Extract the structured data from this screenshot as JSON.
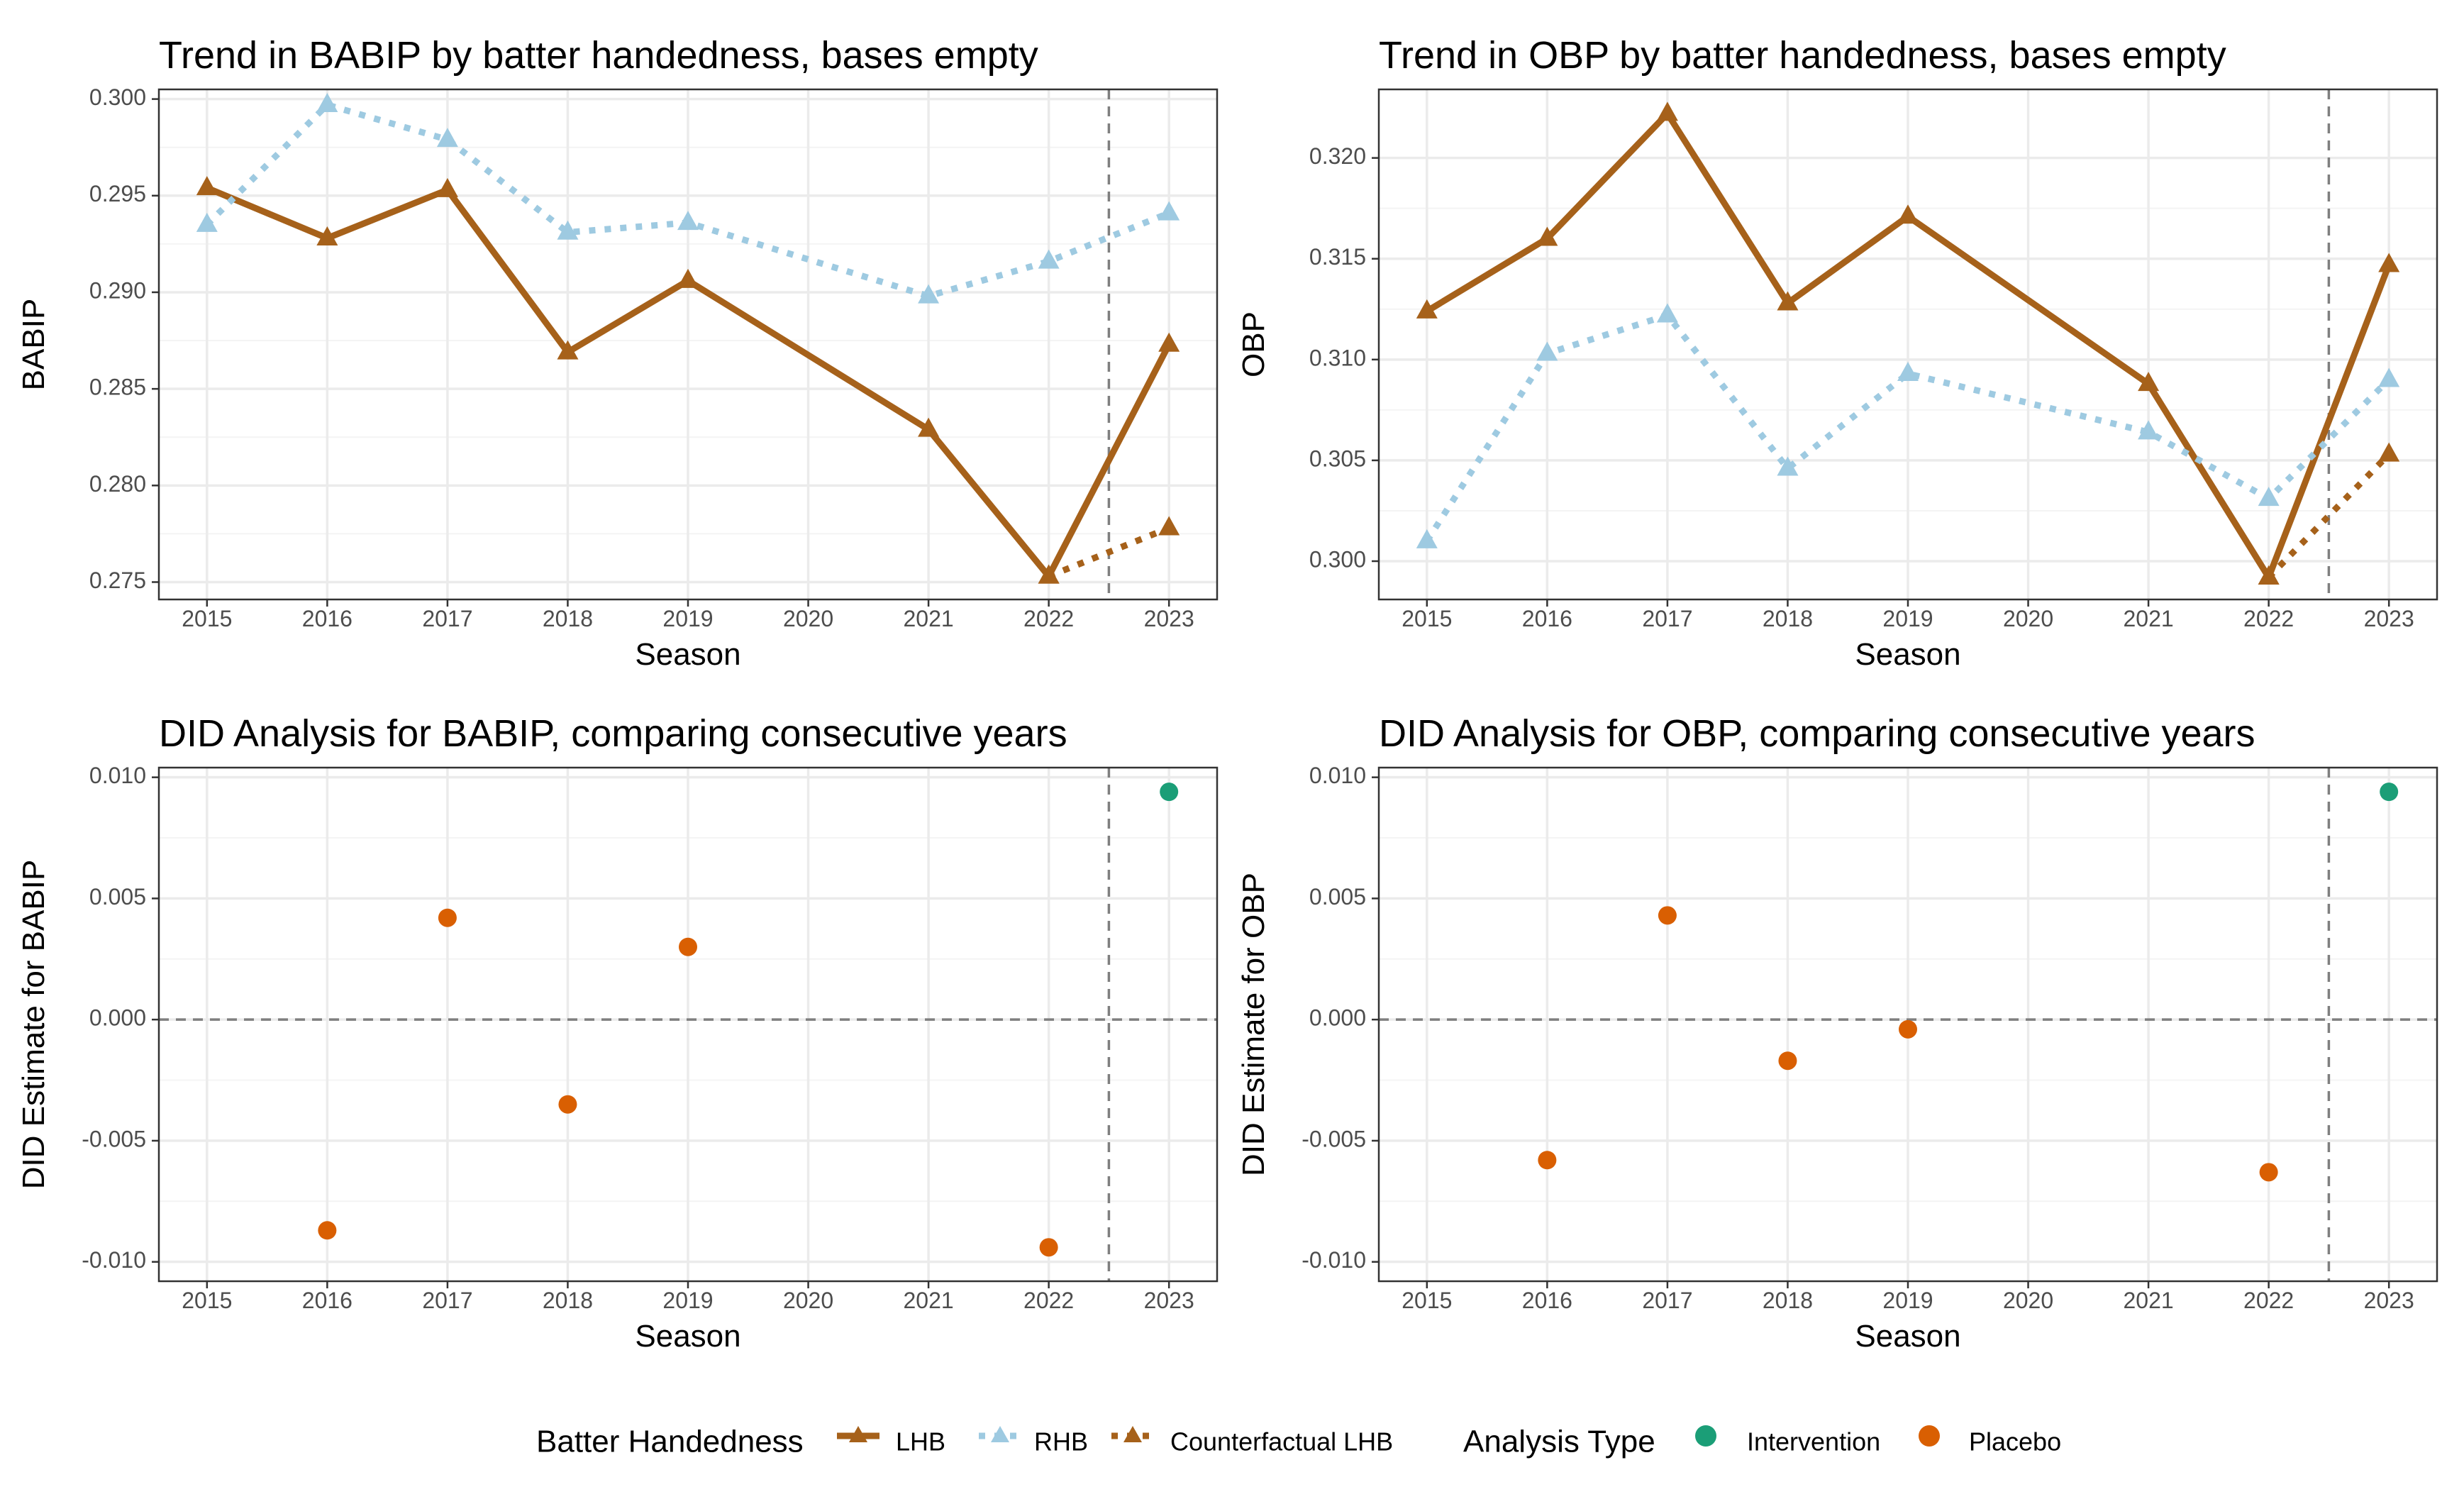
{
  "colors": {
    "lhb": "#A6611A",
    "rhb": "#9ECAE1",
    "intervention": "#1B9E77",
    "placebo": "#D95F02",
    "panel_border": "#333333",
    "grid_major": "#EBEBEB",
    "grid_minor": "#F4F4F4",
    "ref_line": "#7F7F7F"
  },
  "chart_data": [
    {
      "id": "babip_trend",
      "type": "line",
      "title": "Trend in BABIP by batter handedness, bases empty",
      "xlabel": "Season",
      "ylabel": "BABIP",
      "categories": [
        "2015",
        "2016",
        "2017",
        "2018",
        "2019",
        "2020",
        "2021",
        "2022",
        "2023"
      ],
      "xlim": [
        2014.6,
        2023.4
      ],
      "ylim": [
        0.2741,
        0.3005
      ],
      "yticks": [
        0.275,
        0.28,
        0.285,
        0.29,
        0.295,
        0.3
      ],
      "ytick_labels": [
        "0.275",
        "0.280",
        "0.285",
        "0.290",
        "0.295",
        "0.300"
      ],
      "vline": 2022.5,
      "grid": true,
      "series": [
        {
          "name": "LHB",
          "style": "solid",
          "color": "#A6611A",
          "x": [
            2015,
            2016,
            2017,
            2018,
            2019,
            2021,
            2022,
            2023
          ],
          "y": [
            0.2954,
            0.2928,
            0.2953,
            0.2869,
            0.2906,
            0.2829,
            0.2753,
            0.2873
          ]
        },
        {
          "name": "RHB",
          "style": "dotted",
          "color": "#9ECAE1",
          "x": [
            2015,
            2016,
            2017,
            2018,
            2019,
            2021,
            2022,
            2023
          ],
          "y": [
            0.2935,
            0.2997,
            0.2979,
            0.2931,
            0.2936,
            0.2898,
            0.2916,
            0.2941
          ]
        },
        {
          "name": "Counterfactual LHB",
          "style": "dotted",
          "color": "#A6611A",
          "x": [
            2022,
            2023
          ],
          "y": [
            0.2753,
            0.2778
          ]
        }
      ]
    },
    {
      "id": "obp_trend",
      "type": "line",
      "title": "Trend in OBP by batter handedness, bases empty",
      "xlabel": "Season",
      "ylabel": "OBP",
      "categories": [
        "2015",
        "2016",
        "2017",
        "2018",
        "2019",
        "2020",
        "2021",
        "2022",
        "2023"
      ],
      "xlim": [
        2014.6,
        2023.4
      ],
      "ylim": [
        0.2981,
        0.3234
      ],
      "yticks": [
        0.3,
        0.305,
        0.31,
        0.315,
        0.32
      ],
      "ytick_labels": [
        "0.300",
        "0.305",
        "0.310",
        "0.315",
        "0.320"
      ],
      "vline": 2022.5,
      "grid": true,
      "series": [
        {
          "name": "LHB",
          "style": "solid",
          "color": "#A6611A",
          "x": [
            2015,
            2016,
            2017,
            2019,
            2018,
            2021,
            2022,
            2023
          ],
          "y": [
            0.3124,
            0.316,
            0.3222,
            0.3171,
            0.3128,
            0.3088,
            0.2992,
            0.3147
          ]
        },
        {
          "name": "RHB",
          "style": "dotted",
          "color": "#9ECAE1",
          "x": [
            2015,
            2016,
            2017,
            2018,
            2019,
            2021,
            2022,
            2023
          ],
          "y": [
            0.301,
            0.3103,
            0.3122,
            0.3046,
            0.3093,
            0.3064,
            0.3031,
            0.309
          ]
        },
        {
          "name": "Counterfactual LHB",
          "style": "dotted",
          "color": "#A6611A",
          "x": [
            2022,
            2023
          ],
          "y": [
            0.2992,
            0.3053
          ]
        }
      ]
    },
    {
      "id": "babip_did",
      "type": "scatter",
      "title": "DID Analysis for BABIP, comparing consecutive years",
      "xlabel": "Season",
      "ylabel": "DID Estimate for BABIP",
      "categories": [
        "2015",
        "2016",
        "2017",
        "2018",
        "2019",
        "2020",
        "2021",
        "2022",
        "2023"
      ],
      "xlim": [
        2014.6,
        2023.4
      ],
      "ylim": [
        -0.0108,
        0.0104
      ],
      "yticks": [
        -0.01,
        -0.005,
        0,
        0.005,
        0.01
      ],
      "ytick_labels": [
        "-0.010",
        "-0.005",
        "0.000",
        "0.005",
        "0.010"
      ],
      "vline": 2022.5,
      "hline": 0,
      "grid": true,
      "series": [
        {
          "name": "Placebo",
          "color": "#D95F02",
          "x": [
            2016,
            2017,
            2018,
            2019,
            2022
          ],
          "y": [
            -0.0087,
            0.0042,
            -0.0035,
            0.003,
            -0.0094
          ]
        },
        {
          "name": "Intervention",
          "color": "#1B9E77",
          "x": [
            2023
          ],
          "y": [
            0.0094
          ]
        }
      ]
    },
    {
      "id": "obp_did",
      "type": "scatter",
      "title": "DID Analysis for OBP, comparing consecutive years",
      "xlabel": "Season",
      "ylabel": "DID Estimate for OBP",
      "categories": [
        "2015",
        "2016",
        "2017",
        "2018",
        "2019",
        "2020",
        "2021",
        "2022",
        "2023"
      ],
      "xlim": [
        2014.6,
        2023.4
      ],
      "ylim": [
        -0.0108,
        0.0104
      ],
      "yticks": [
        -0.01,
        -0.005,
        0,
        0.005,
        0.01
      ],
      "ytick_labels": [
        "-0.010",
        "-0.005",
        "0.000",
        "0.005",
        "0.010"
      ],
      "vline": 2022.5,
      "hline": 0,
      "grid": true,
      "series": [
        {
          "name": "Placebo",
          "color": "#D95F02",
          "x": [
            2016,
            2017,
            2018,
            2019,
            2022
          ],
          "y": [
            -0.0058,
            0.0043,
            -0.0017,
            -0.0004,
            -0.0063
          ]
        },
        {
          "name": "Intervention",
          "color": "#1B9E77",
          "x": [
            2023
          ],
          "y": [
            0.0094
          ]
        }
      ]
    }
  ],
  "legend": {
    "position": "bottom",
    "handedness": {
      "title": "Batter Handedness",
      "items": [
        "LHB",
        "RHB",
        "Counterfactual LHB"
      ]
    },
    "analysis": {
      "title": "Analysis Type",
      "items": [
        "Intervention",
        "Placebo"
      ]
    }
  }
}
